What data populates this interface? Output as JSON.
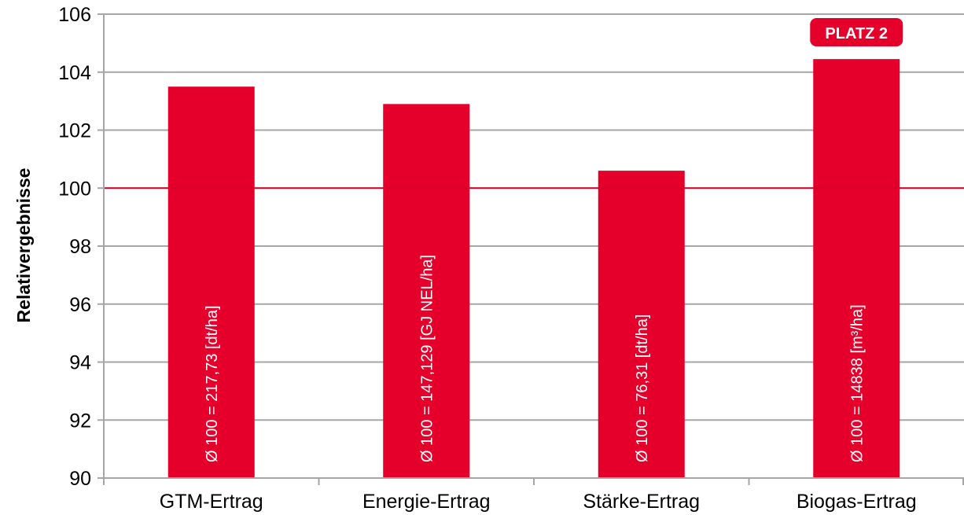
{
  "chart_data": {
    "type": "bar",
    "categories": [
      "GTM-Ertrag",
      "Energie-Ertrag",
      "Stärke-Ertrag",
      "Biogas-Ertrag"
    ],
    "values": [
      103.5,
      102.9,
      100.6,
      104.45
    ],
    "bar_labels": [
      "Ø 100 = 217,73 [dt/ha]",
      "Ø 100 = 147,129 [GJ NEL/ha]",
      "Ø 100 = 76,31 [dt/ha]",
      "Ø 100 = 14838 [m³/ha]"
    ],
    "ylabel": "Relativergebnisse",
    "ylim": [
      90,
      106
    ],
    "yticks": [
      90,
      92,
      94,
      96,
      98,
      100,
      102,
      104,
      106
    ],
    "reference_line": 100,
    "grid": true,
    "badge": {
      "text": "PLATZ 2",
      "category_index": 3
    },
    "colors": {
      "bar": "#e4002b",
      "reference_line": "#d8002a",
      "grid": "#a6a6a6",
      "badge": "#e4002b"
    }
  }
}
